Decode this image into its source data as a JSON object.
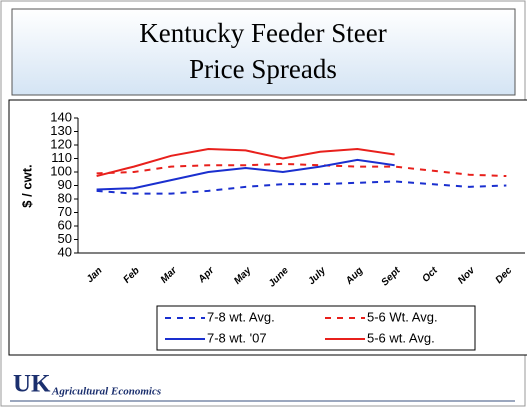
{
  "chart_data": {
    "type": "line",
    "title": "Kentucky Feeder Steer",
    "subtitle": "Price Spreads",
    "ylabel": "$ / cwt.",
    "categories": [
      "Jan",
      "Feb",
      "Mar",
      "Apr",
      "May",
      "June",
      "July",
      "Aug",
      "Sept",
      "Oct",
      "Nov",
      "Dec"
    ],
    "ylim": [
      40,
      140
    ],
    "yticks": [
      40,
      50,
      60,
      70,
      80,
      90,
      100,
      110,
      120,
      130,
      140
    ],
    "grid": false,
    "legend": "bottom",
    "series": [
      {
        "name": "7-8 wt. Avg.",
        "color": "#1a2fcf",
        "dashed": true,
        "values": [
          86,
          84,
          84,
          86,
          89,
          91,
          91,
          92,
          93,
          91,
          89,
          90
        ]
      },
      {
        "name": "5-6 Wt. Avg.",
        "color": "#e8201c",
        "dashed": true,
        "values": [
          99,
          100,
          104,
          105,
          105,
          106,
          105,
          104,
          104,
          101,
          98,
          97
        ]
      },
      {
        "name": "7-8 wt. '07",
        "color": "#1a2fcf",
        "dashed": false,
        "values": [
          87,
          88,
          94,
          100,
          103,
          100,
          104,
          109,
          105,
          null,
          null,
          null
        ]
      },
      {
        "name": "5-6 wt. Avg.",
        "color": "#e8201c",
        "dashed": false,
        "values": [
          97,
          104,
          112,
          117,
          116,
          110,
          115,
          117,
          113,
          null,
          null,
          null
        ]
      }
    ]
  },
  "footer": {
    "logo": "UK",
    "text": "Agricultural Economics"
  }
}
